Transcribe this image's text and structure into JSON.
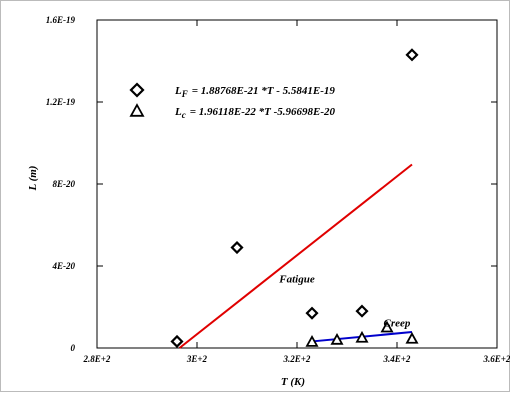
{
  "chart_data": {
    "type": "scatter",
    "xlabel": "T (K)",
    "ylabel": "L (m)",
    "xlim": [
      280,
      360
    ],
    "ylim": [
      0,
      1.6e-19
    ],
    "x_ticks": [
      {
        "value": 280,
        "label": "2.8E+2"
      },
      {
        "value": 300,
        "label": "3E+2"
      },
      {
        "value": 320,
        "label": "3.2E+2"
      },
      {
        "value": 340,
        "label": "3.4E+2"
      },
      {
        "value": 360,
        "label": "3.6E+2"
      }
    ],
    "y_ticks": [
      {
        "value": 0,
        "label": "0"
      },
      {
        "value": 4e-20,
        "label": "4E-20"
      },
      {
        "value": 8e-20,
        "label": "8E-20"
      },
      {
        "value": 1.2e-19,
        "label": "1.2E-19"
      },
      {
        "value": 1.6e-19,
        "label": "1.6E-19"
      }
    ],
    "series": [
      {
        "key": "fatigue",
        "marker": "diamond",
        "color": "#000000",
        "line_color": "#e00000",
        "points": [
          {
            "x": 296,
            "y": 3.2e-21
          },
          {
            "x": 308,
            "y": 4.9e-20
          },
          {
            "x": 323,
            "y": 1.7e-20
          },
          {
            "x": 333,
            "y": 1.8e-20
          },
          {
            "x": 343,
            "y": 1.43e-19
          }
        ],
        "fit": {
          "x": [
            296.5,
            343
          ],
          "y": [
            0,
            8.95e-20
          ]
        },
        "annotation": {
          "text": "Fatigue",
          "x": 320,
          "y": 3.2e-20
        }
      },
      {
        "key": "creep",
        "marker": "triangle",
        "color": "#000000",
        "line_color": "#0000cc",
        "points": [
          {
            "x": 323,
            "y": 3e-21
          },
          {
            "x": 328,
            "y": 4e-21
          },
          {
            "x": 333,
            "y": 5e-21
          },
          {
            "x": 338,
            "y": 1e-20
          },
          {
            "x": 343,
            "y": 4.5e-21
          }
        ],
        "fit": {
          "x": [
            323,
            343
          ],
          "y": [
            3.2e-21,
            7.8e-21
          ]
        },
        "annotation": {
          "text": "Creep",
          "x": 340,
          "y": 1.05e-20
        }
      }
    ],
    "legend": {
      "placement": "top-left",
      "entries": [
        {
          "marker": "diamond",
          "prefix": "L",
          "subscript": "F",
          "equation": "= 1.88768E-21 *T - 5.5841E-19"
        },
        {
          "marker": "triangle",
          "prefix": "L",
          "subscript": "c",
          "equation": "= 1.96118E-22 *T -5.96698E-20"
        }
      ]
    },
    "grid": false
  }
}
